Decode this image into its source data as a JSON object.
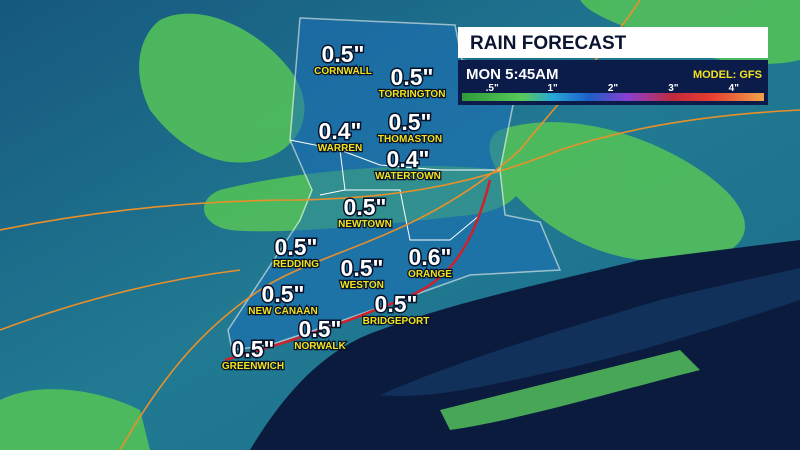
{
  "legend": {
    "title": "RAIN FORECAST",
    "time": "MON 5:45AM",
    "model": "MODEL: GFS",
    "scale": [
      ".5\"",
      "1\"",
      "2\"",
      "3\"",
      "4\""
    ]
  },
  "towns": [
    {
      "name": "CORNWALL",
      "amount": "0.5\""
    },
    {
      "name": "TORRINGTON",
      "amount": "0.5\""
    },
    {
      "name": "WARREN",
      "amount": "0.4\""
    },
    {
      "name": "THOMASTON",
      "amount": "0.5\""
    },
    {
      "name": "WATERTOWN",
      "amount": "0.4\""
    },
    {
      "name": "NEWTOWN",
      "amount": "0.5\""
    },
    {
      "name": "REDDING",
      "amount": "0.5\""
    },
    {
      "name": "WESTON",
      "amount": "0.5\""
    },
    {
      "name": "ORANGE",
      "amount": "0.6\""
    },
    {
      "name": "NEW CANAAN",
      "amount": "0.5\""
    },
    {
      "name": "BRIDGEPORT",
      "amount": "0.5\""
    },
    {
      "name": "NORWALK",
      "amount": "0.5\""
    },
    {
      "name": "GREENWICH",
      "amount": "0.5\""
    }
  ]
}
